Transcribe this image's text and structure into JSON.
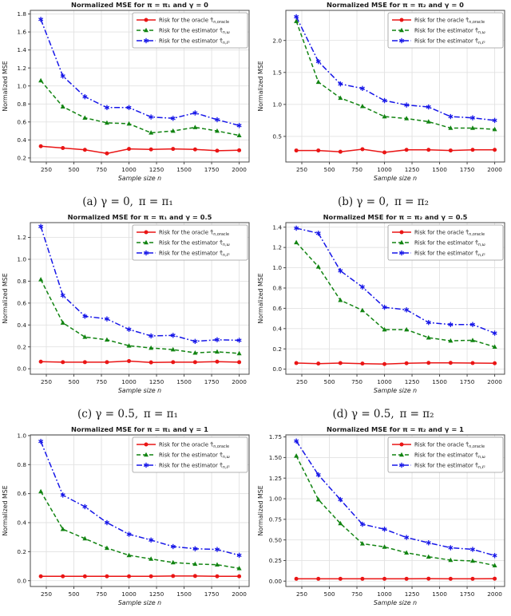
{
  "chart_data": [
    {
      "id": "a",
      "type": "line",
      "title": "Normalized MSE for π = π₁ and γ = 0",
      "xlabel": "Sample size n",
      "ylabel": "Normalized MSE",
      "caption": "(a) γ = 0, π = π₁",
      "grid": true,
      "legend_position": "upper right",
      "x": [
        200,
        400,
        600,
        800,
        1000,
        1200,
        1400,
        1600,
        1800,
        2000
      ],
      "xlim": [
        105,
        2090
      ],
      "ylim": [
        0.155,
        1.84
      ],
      "xticks": [
        250,
        500,
        750,
        1000,
        1250,
        1500,
        1750,
        2000
      ],
      "xticklabels": [
        "250",
        "500",
        "750",
        "1000",
        "1250",
        "1500",
        "1750",
        "2000"
      ],
      "yticks": [
        0.2,
        0.4,
        0.6,
        0.8,
        1.0,
        1.2,
        1.4,
        1.6,
        1.8
      ],
      "yticklabels": [
        "0.2",
        "0.4",
        "0.6",
        "0.8",
        "1.0",
        "1.2",
        "1.4",
        "1.6",
        "1.8"
      ],
      "series": [
        {
          "name": "oracle",
          "label": "Risk for the oracle τ̂",
          "label_sub": "n,oracle",
          "color": "#ea1515",
          "linestyle": "solid",
          "marker": "circle",
          "values": [
            0.33,
            0.31,
            0.29,
            0.25,
            0.3,
            0.295,
            0.3,
            0.295,
            0.28,
            0.285
          ]
        },
        {
          "name": "omega",
          "label": "Risk for the estimator τ̂",
          "label_sub": "n,ω",
          "color": "#128412",
          "linestyle": "dashed",
          "marker": "triangle",
          "values": [
            1.06,
            0.77,
            0.645,
            0.59,
            0.58,
            0.48,
            0.5,
            0.54,
            0.5,
            0.45
          ]
        },
        {
          "name": "l2",
          "label": "Risk for the estimator τ̂",
          "label_sub": "n,ℓ²",
          "color": "#1717e8",
          "linestyle": "dashdot",
          "marker": "star",
          "values": [
            1.74,
            1.11,
            0.88,
            0.76,
            0.76,
            0.655,
            0.64,
            0.7,
            0.625,
            0.56
          ]
        }
      ]
    },
    {
      "id": "b",
      "type": "line",
      "title": "Normalized MSE for π = π₂ and γ = 0",
      "xlabel": "Sample size n",
      "ylabel": "Normalized MSE",
      "caption": "(b) γ = 0, π = π₂",
      "grid": true,
      "legend_position": "upper right",
      "x": [
        200,
        400,
        600,
        800,
        1000,
        1200,
        1400,
        1600,
        1800,
        2000
      ],
      "xlim": [
        105,
        2090
      ],
      "ylim": [
        0.1,
        2.47
      ],
      "xticks": [
        250,
        500,
        750,
        1000,
        1250,
        1500,
        1750,
        2000
      ],
      "xticklabels": [
        "250",
        "500",
        "750",
        "1000",
        "1250",
        "1500",
        "1750",
        "2000"
      ],
      "yticks": [
        0.5,
        1.0,
        1.5,
        2.0
      ],
      "yticklabels": [
        "0.5",
        "1.0",
        "1.5",
        "2.0"
      ],
      "series": [
        {
          "name": "oracle",
          "label": "Risk for the oracle τ̂",
          "label_sub": "n,oracle",
          "color": "#ea1515",
          "linestyle": "solid",
          "marker": "circle",
          "values": [
            0.28,
            0.28,
            0.26,
            0.3,
            0.25,
            0.29,
            0.29,
            0.28,
            0.29,
            0.29
          ]
        },
        {
          "name": "omega",
          "label": "Risk for the estimator τ̂",
          "label_sub": "n,ω",
          "color": "#128412",
          "linestyle": "dashed",
          "marker": "triangle",
          "values": [
            2.3,
            1.35,
            1.1,
            0.97,
            0.81,
            0.78,
            0.73,
            0.63,
            0.63,
            0.61
          ]
        },
        {
          "name": "l2",
          "label": "Risk for the estimator τ̂",
          "label_sub": "n,ℓ²",
          "color": "#1717e8",
          "linestyle": "dashdot",
          "marker": "star",
          "values": [
            2.37,
            1.67,
            1.32,
            1.25,
            1.06,
            0.99,
            0.96,
            0.81,
            0.79,
            0.75
          ]
        }
      ]
    },
    {
      "id": "c",
      "type": "line",
      "title": "Normalized MSE for π = π₁ and γ = 0.5",
      "xlabel": "Sample size n",
      "ylabel": "Normalized MSE",
      "caption": "(c) γ = 0.5, π = π₁",
      "grid": true,
      "legend_position": "upper right",
      "x": [
        200,
        400,
        600,
        800,
        1000,
        1200,
        1400,
        1600,
        1800,
        2000
      ],
      "xlim": [
        105,
        2090
      ],
      "ylim": [
        -0.05,
        1.335
      ],
      "xticks": [
        250,
        500,
        750,
        1000,
        1250,
        1500,
        1750,
        2000
      ],
      "xticklabels": [
        "250",
        "500",
        "750",
        "1000",
        "1250",
        "1500",
        "1750",
        "2000"
      ],
      "yticks": [
        0.0,
        0.2,
        0.4,
        0.6,
        0.8,
        1.0,
        1.2
      ],
      "yticklabels": [
        "0.0",
        "0.2",
        "0.4",
        "0.6",
        "0.8",
        "1.0",
        "1.2"
      ],
      "series": [
        {
          "name": "oracle",
          "label": "Risk for the oracle τ̂",
          "label_sub": "n,oracle",
          "color": "#ea1515",
          "linestyle": "solid",
          "marker": "circle",
          "values": [
            0.065,
            0.06,
            0.06,
            0.06,
            0.07,
            0.058,
            0.06,
            0.06,
            0.065,
            0.06
          ]
        },
        {
          "name": "omega",
          "label": "Risk for the estimator τ̂",
          "label_sub": "n,ω",
          "color": "#128412",
          "linestyle": "dashed",
          "marker": "triangle",
          "values": [
            0.815,
            0.42,
            0.29,
            0.265,
            0.21,
            0.19,
            0.175,
            0.145,
            0.155,
            0.14
          ]
        },
        {
          "name": "l2",
          "label": "Risk for the estimator τ̂",
          "label_sub": "n,ℓ²",
          "color": "#1717e8",
          "linestyle": "dashdot",
          "marker": "star",
          "values": [
            1.3,
            0.67,
            0.48,
            0.455,
            0.36,
            0.3,
            0.305,
            0.25,
            0.265,
            0.26
          ]
        }
      ]
    },
    {
      "id": "d",
      "type": "line",
      "title": "Normalized MSE for π = π₂ and γ = 0.5",
      "xlabel": "Sample size n",
      "ylabel": "Normalized MSE",
      "caption": "(d) γ = 0.5, π = π₂",
      "grid": true,
      "legend_position": "upper right",
      "x": [
        200,
        400,
        600,
        800,
        1000,
        1200,
        1400,
        1600,
        1800,
        2000
      ],
      "xlim": [
        105,
        2090
      ],
      "ylim": [
        -0.05,
        1.445
      ],
      "xticks": [
        250,
        500,
        750,
        1000,
        1250,
        1500,
        1750,
        2000
      ],
      "xticklabels": [
        "250",
        "500",
        "750",
        "1000",
        "1250",
        "1500",
        "1750",
        "2000"
      ],
      "yticks": [
        0.0,
        0.2,
        0.4,
        0.6,
        0.8,
        1.0,
        1.2,
        1.4
      ],
      "yticklabels": [
        "0.0",
        "0.2",
        "0.4",
        "0.6",
        "0.8",
        "1.0",
        "1.2",
        "1.4"
      ],
      "series": [
        {
          "name": "oracle",
          "label": "Risk for the oracle τ̂",
          "label_sub": "n,oracle",
          "color": "#ea1515",
          "linestyle": "solid",
          "marker": "circle",
          "values": [
            0.06,
            0.055,
            0.06,
            0.055,
            0.05,
            0.058,
            0.062,
            0.062,
            0.06,
            0.058
          ]
        },
        {
          "name": "omega",
          "label": "Risk for the estimator τ̂",
          "label_sub": "n,ω",
          "color": "#128412",
          "linestyle": "dashed",
          "marker": "triangle",
          "values": [
            1.25,
            1.01,
            0.68,
            0.58,
            0.39,
            0.39,
            0.31,
            0.28,
            0.285,
            0.22
          ]
        },
        {
          "name": "l2",
          "label": "Risk for the estimator τ̂",
          "label_sub": "n,ℓ²",
          "color": "#1717e8",
          "linestyle": "dashdot",
          "marker": "star",
          "values": [
            1.39,
            1.34,
            0.97,
            0.81,
            0.61,
            0.585,
            0.46,
            0.44,
            0.44,
            0.355
          ]
        }
      ]
    },
    {
      "id": "e",
      "type": "line",
      "title": "Normalized MSE for π = π₁ and γ = 1",
      "xlabel": "Sample size n",
      "ylabel": "Normalized MSE",
      "caption": null,
      "grid": true,
      "legend_position": "upper right",
      "x": [
        200,
        400,
        600,
        800,
        1000,
        1200,
        1400,
        1600,
        1800,
        2000
      ],
      "xlim": [
        105,
        2090
      ],
      "ylim": [
        -0.04,
        1.005
      ],
      "xticks": [
        250,
        500,
        750,
        1000,
        1250,
        1500,
        1750,
        2000
      ],
      "xticklabels": [
        "250",
        "500",
        "750",
        "1000",
        "1250",
        "1500",
        "1750",
        "2000"
      ],
      "yticks": [
        0.0,
        0.2,
        0.4,
        0.6,
        0.8,
        1.0
      ],
      "yticklabels": [
        "0.0",
        "0.2",
        "0.4",
        "0.6",
        "0.8",
        "1.0"
      ],
      "series": [
        {
          "name": "oracle",
          "label": "Risk for the oracle τ̂",
          "label_sub": "n,oracle",
          "color": "#ea1515",
          "linestyle": "solid",
          "marker": "circle",
          "values": [
            0.03,
            0.03,
            0.03,
            0.03,
            0.03,
            0.03,
            0.032,
            0.032,
            0.03,
            0.03
          ]
        },
        {
          "name": "omega",
          "label": "Risk for the estimator τ̂",
          "label_sub": "n,ω",
          "color": "#128412",
          "linestyle": "dashed",
          "marker": "triangle",
          "values": [
            0.615,
            0.355,
            0.29,
            0.225,
            0.175,
            0.15,
            0.125,
            0.115,
            0.11,
            0.085
          ]
        },
        {
          "name": "l2",
          "label": "Risk for the estimator τ̂",
          "label_sub": "n,ℓ²",
          "color": "#1717e8",
          "linestyle": "dashdot",
          "marker": "star",
          "values": [
            0.96,
            0.59,
            0.51,
            0.4,
            0.32,
            0.28,
            0.235,
            0.22,
            0.215,
            0.175
          ]
        }
      ]
    },
    {
      "id": "f",
      "type": "line",
      "title": "Normalized MSE for π = π₂ and γ = 1",
      "xlabel": "Sample size n",
      "ylabel": "Normalized MSE",
      "caption": null,
      "grid": true,
      "legend_position": "upper right",
      "x": [
        200,
        400,
        600,
        800,
        1000,
        1200,
        1400,
        1600,
        1800,
        2000
      ],
      "xlim": [
        105,
        2090
      ],
      "ylim": [
        -0.065,
        1.775
      ],
      "xticks": [
        250,
        500,
        750,
        1000,
        1250,
        1500,
        1750,
        2000
      ],
      "xticklabels": [
        "250",
        "500",
        "750",
        "1000",
        "1250",
        "1500",
        "1750",
        "2000"
      ],
      "yticks": [
        0.0,
        0.25,
        0.5,
        0.75,
        1.0,
        1.25,
        1.5,
        1.75
      ],
      "yticklabels": [
        "0.00",
        "0.25",
        "0.50",
        "0.75",
        "1.00",
        "1.25",
        "1.50",
        "1.75"
      ],
      "series": [
        {
          "name": "oracle",
          "label": "Risk for the oracle τ̂",
          "label_sub": "n,oracle",
          "color": "#ea1515",
          "linestyle": "solid",
          "marker": "circle",
          "values": [
            0.028,
            0.028,
            0.028,
            0.028,
            0.028,
            0.028,
            0.03,
            0.028,
            0.028,
            0.03
          ]
        },
        {
          "name": "omega",
          "label": "Risk for the estimator τ̂",
          "label_sub": "n,ω",
          "color": "#128412",
          "linestyle": "dashed",
          "marker": "triangle",
          "values": [
            1.52,
            0.99,
            0.7,
            0.455,
            0.415,
            0.345,
            0.295,
            0.255,
            0.245,
            0.19
          ]
        },
        {
          "name": "l2",
          "label": "Risk for the estimator τ̂",
          "label_sub": "n,ℓ²",
          "color": "#1717e8",
          "linestyle": "dashdot",
          "marker": "star",
          "values": [
            1.7,
            1.29,
            0.99,
            0.69,
            0.63,
            0.53,
            0.465,
            0.405,
            0.385,
            0.31
          ]
        }
      ]
    }
  ]
}
